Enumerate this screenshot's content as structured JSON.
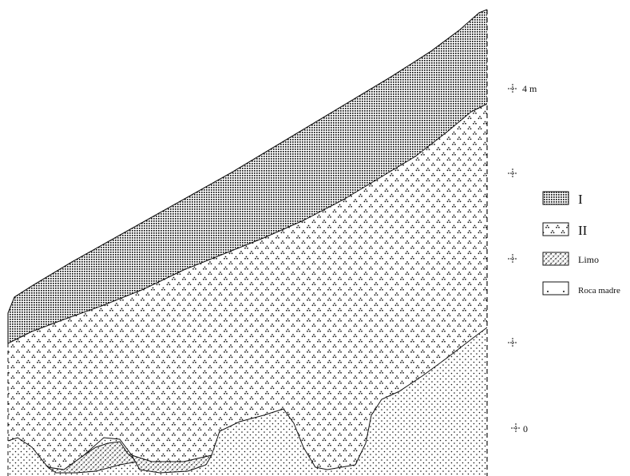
{
  "scale": {
    "labels": [
      "4 m",
      "",
      "",
      "",
      "0"
    ]
  },
  "legend": {
    "items": [
      {
        "label": "I",
        "pattern": "dense-dots"
      },
      {
        "label": "II",
        "pattern": "triangles"
      },
      {
        "label": "Limo",
        "pattern": "crosshatch"
      },
      {
        "label": "Roca madre",
        "pattern": "sparse-dots"
      }
    ]
  },
  "colors": {
    "ink": "#111111",
    "background": "#ffffff"
  }
}
